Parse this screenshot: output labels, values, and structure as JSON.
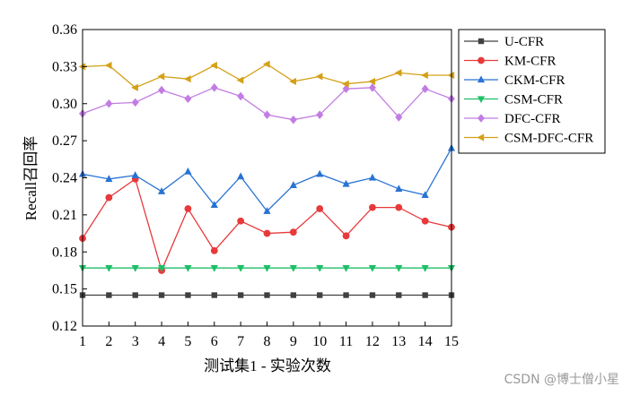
{
  "chart_data": {
    "type": "line",
    "xlabel": "测试集1 - 实验次数",
    "ylabel": "Recall召回率",
    "x": [
      1,
      2,
      3,
      4,
      5,
      6,
      7,
      8,
      9,
      10,
      11,
      12,
      13,
      14,
      15
    ],
    "xlim": [
      1,
      15
    ],
    "ylim": [
      0.12,
      0.36
    ],
    "yticks": [
      "0.12",
      "0.15",
      "0.18",
      "0.21",
      "0.24",
      "0.27",
      "0.30",
      "0.33",
      "0.36"
    ],
    "xticks": [
      "1",
      "2",
      "3",
      "4",
      "5",
      "6",
      "7",
      "8",
      "9",
      "10",
      "11",
      "12",
      "13",
      "14",
      "15"
    ],
    "grid": false,
    "legend_position": "top-right, outside plot",
    "series": [
      {
        "name": "U-CFR",
        "color": "#404040",
        "marker": "square",
        "values": [
          0.145,
          0.145,
          0.145,
          0.145,
          0.145,
          0.145,
          0.145,
          0.145,
          0.145,
          0.145,
          0.145,
          0.145,
          0.145,
          0.145,
          0.145
        ]
      },
      {
        "name": "KM-CFR",
        "color": "#e8393b",
        "marker": "circle",
        "values": [
          0.191,
          0.224,
          0.239,
          0.165,
          0.215,
          0.181,
          0.205,
          0.195,
          0.196,
          0.215,
          0.193,
          0.216,
          0.216,
          0.205,
          0.2
        ]
      },
      {
        "name": "CKM-CFR",
        "color": "#2873d4",
        "marker": "triangle-up",
        "values": [
          0.243,
          0.239,
          0.242,
          0.229,
          0.245,
          0.218,
          0.241,
          0.213,
          0.234,
          0.243,
          0.235,
          0.24,
          0.231,
          0.226,
          0.264
        ]
      },
      {
        "name": "CSM-CFR",
        "color": "#1fbf67",
        "marker": "triangle-down",
        "values": [
          0.167,
          0.167,
          0.167,
          0.167,
          0.167,
          0.167,
          0.167,
          0.167,
          0.167,
          0.167,
          0.167,
          0.167,
          0.167,
          0.167,
          0.167
        ]
      },
      {
        "name": "DFC-CFR",
        "color": "#c17de3",
        "marker": "diamond",
        "values": [
          0.292,
          0.3,
          0.301,
          0.311,
          0.304,
          0.313,
          0.306,
          0.291,
          0.287,
          0.291,
          0.312,
          0.313,
          0.289,
          0.312,
          0.304
        ]
      },
      {
        "name": "CSM-DFC-CFR",
        "color": "#d4a017",
        "marker": "triangle-left",
        "values": [
          0.33,
          0.331,
          0.313,
          0.322,
          0.32,
          0.331,
          0.319,
          0.332,
          0.318,
          0.322,
          0.316,
          0.318,
          0.325,
          0.323,
          0.323
        ]
      }
    ]
  },
  "watermark": "CSDN @博士僧小星"
}
